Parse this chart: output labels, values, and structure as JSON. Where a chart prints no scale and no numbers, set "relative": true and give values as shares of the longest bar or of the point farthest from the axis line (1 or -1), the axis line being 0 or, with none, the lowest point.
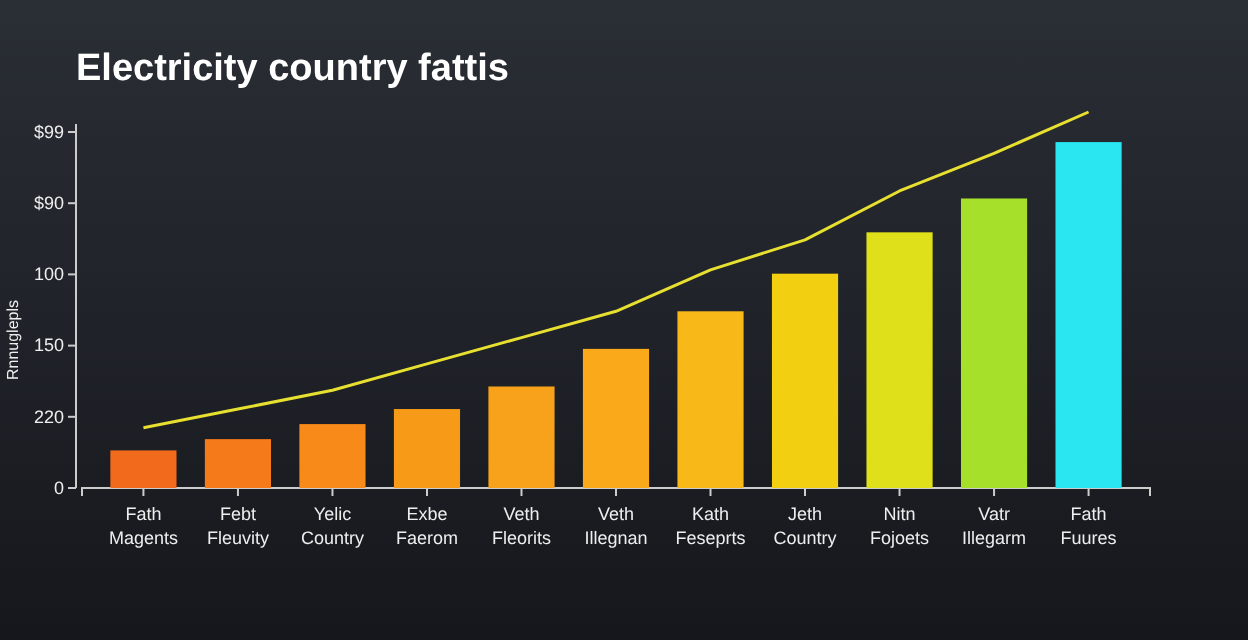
{
  "chart_data": {
    "type": "bar",
    "title": "Electricity country fattis",
    "ylabel": "Rnnuglepls",
    "relative": true,
    "categories": [
      "Fath Magents",
      "Febt Fleuvity",
      "Yelic Country",
      "Exbe Faerom",
      "Veth Fleorits",
      "Veth Illegnan",
      "Kath Feseprts",
      "Jeth Country",
      "Nitn Fojoets",
      "Vatr Illegarm",
      "Fath Fuures"
    ],
    "series": [
      {
        "colors": [
          "#f26a1b",
          "#f57a1a",
          "#f78a18",
          "#f79a17",
          "#f7a21a",
          "#f9a91a",
          "#f7b818",
          "#f2cf10",
          "#dfe01a",
          "#a6e02a",
          "#29e6f0"
        ],
        "values": [
          0.1,
          0.13,
          0.17,
          0.21,
          0.27,
          0.37,
          0.47,
          0.57,
          0.68,
          0.77,
          0.92
        ]
      },
      {
        "type": "line",
        "color": "#e8e030",
        "values": [
          0.16,
          0.21,
          0.26,
          0.33,
          0.4,
          0.47,
          0.58,
          0.66,
          0.79,
          0.89,
          1
        ]
      }
    ],
    "annotations": [
      "0",
      "220",
      "150",
      "100",
      "$90",
      "$99"
    ],
    "marker": "none",
    "line_style": "solid"
  }
}
